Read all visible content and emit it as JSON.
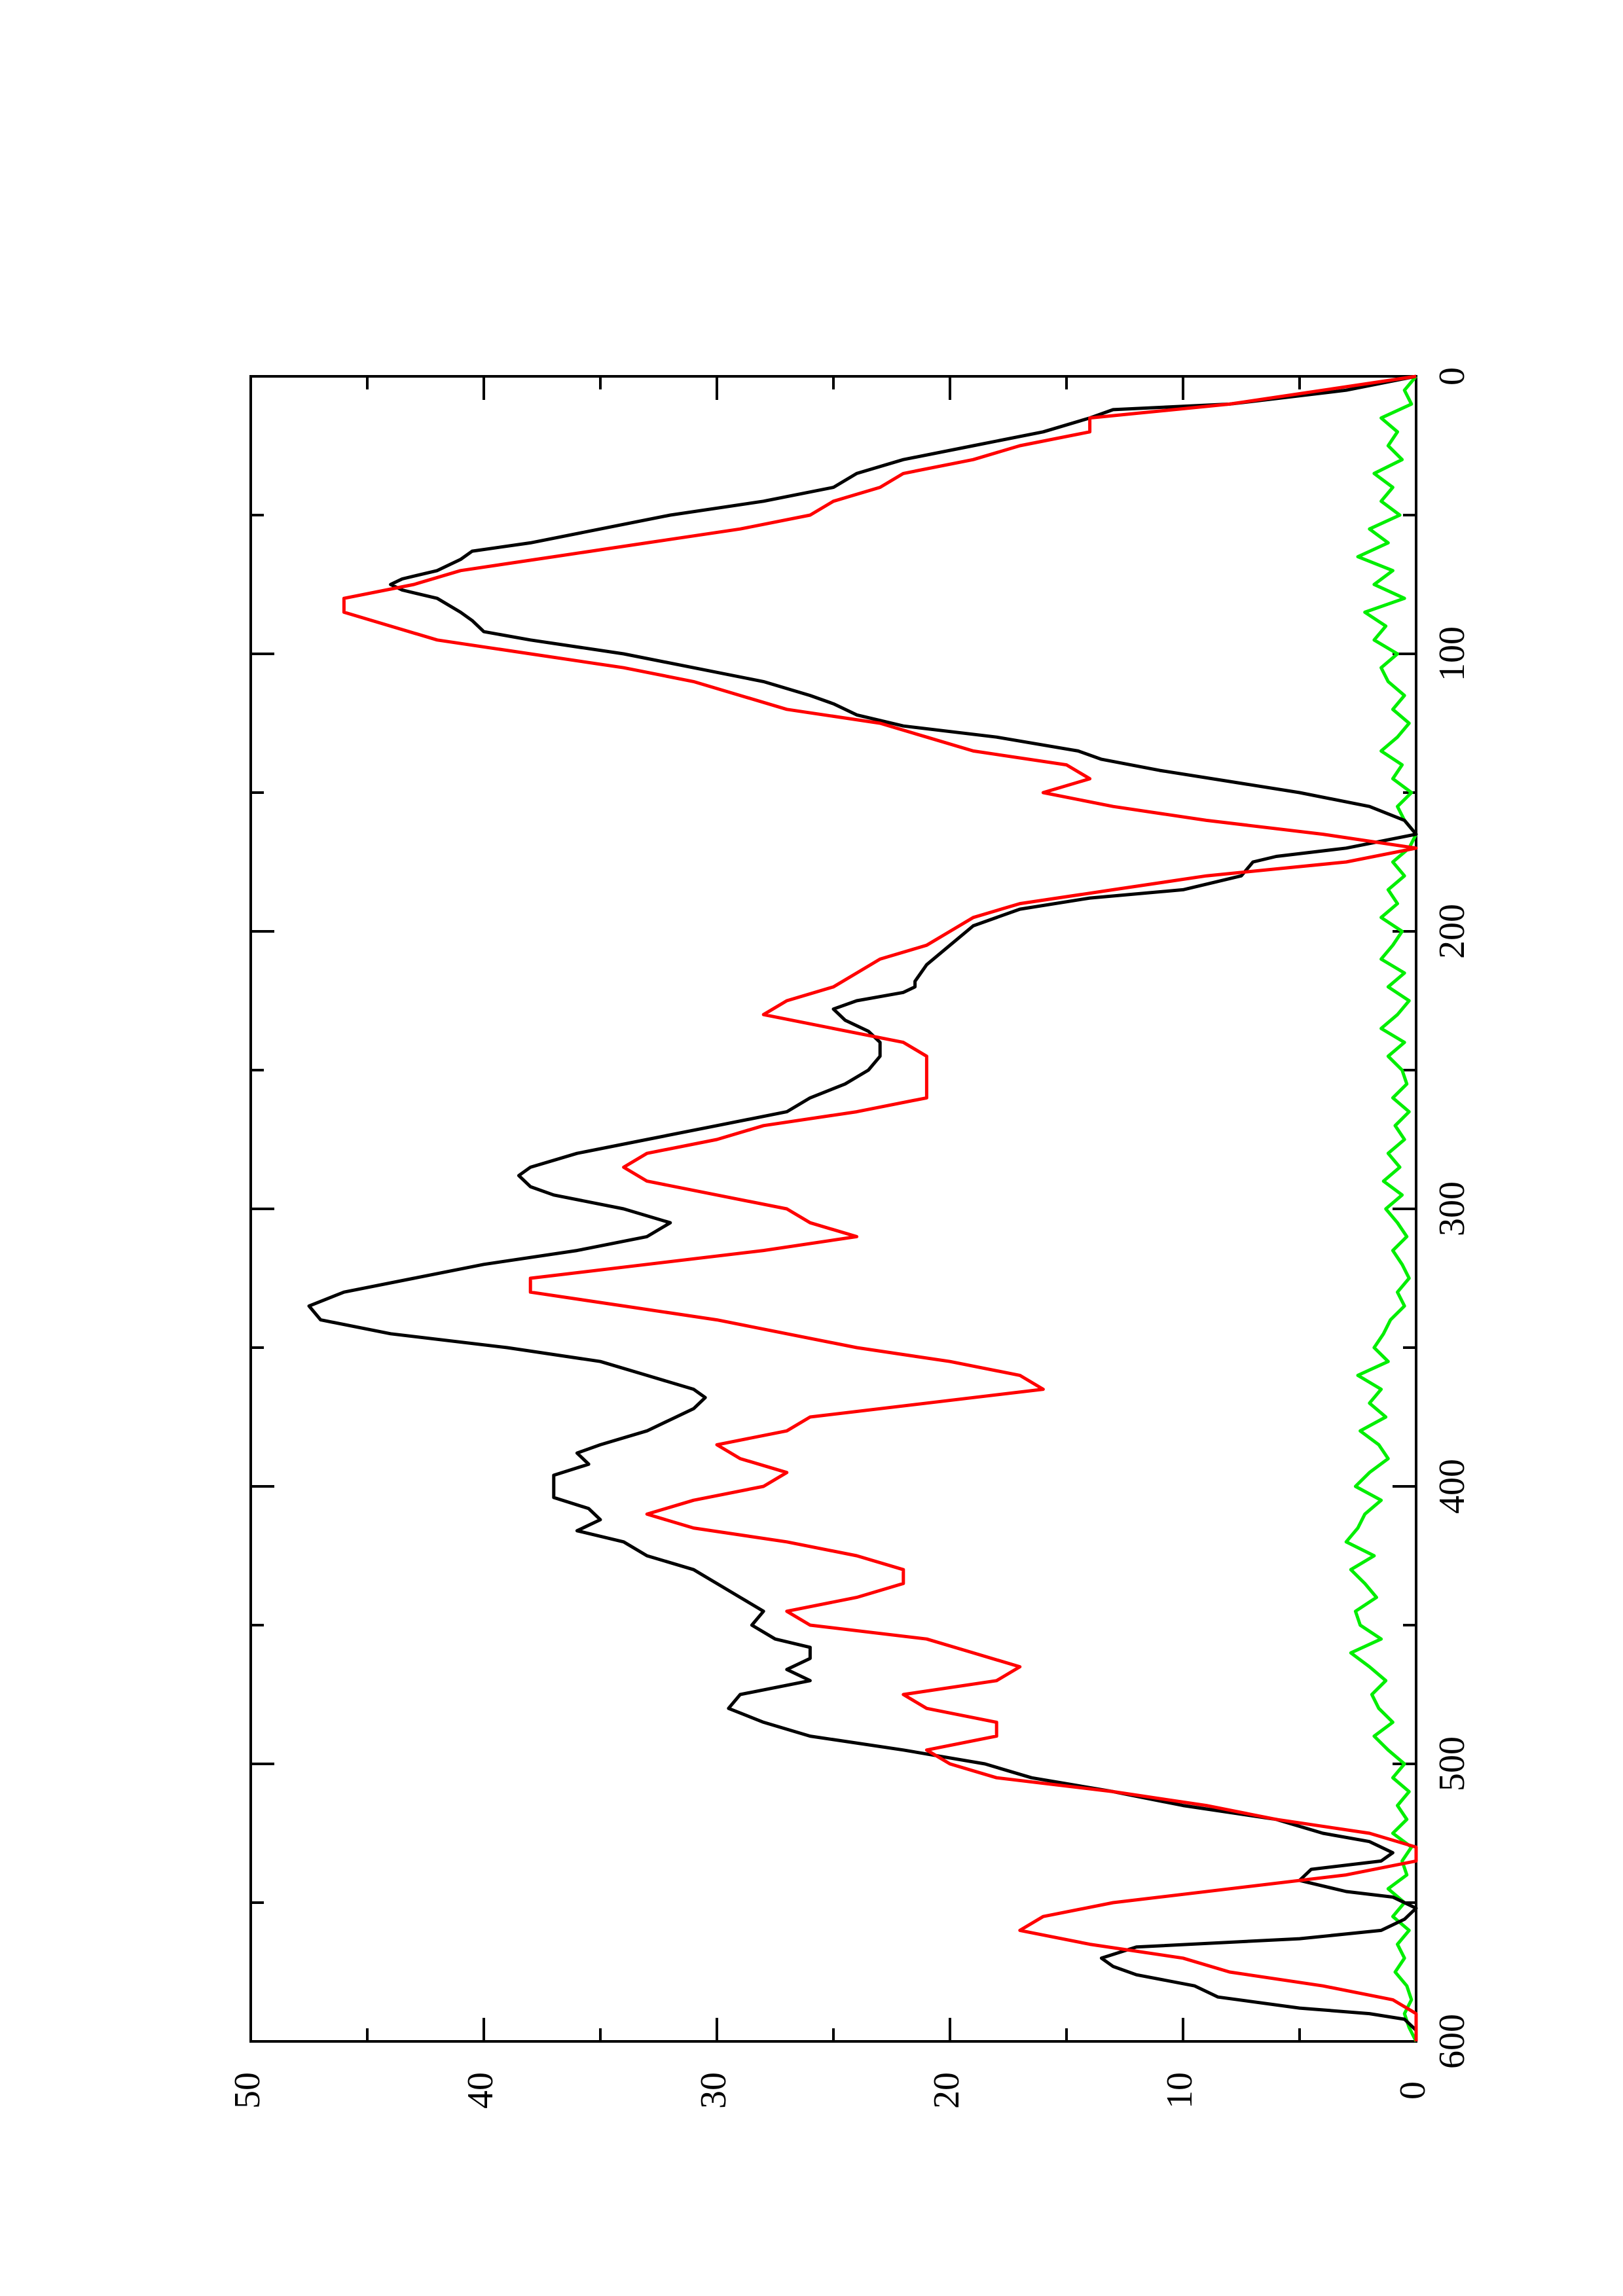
{
  "chart_data": {
    "type": "line",
    "orientation": "rotated-90-ccw",
    "title": "",
    "xlabel": "",
    "ylabel": "",
    "xlim": [
      0,
      600
    ],
    "ylim": [
      0,
      50
    ],
    "x_ticks": [
      0,
      100,
      200,
      300,
      400,
      500,
      600
    ],
    "x_minor_ticks": [
      50,
      150,
      250,
      350,
      450,
      550
    ],
    "y_ticks": [
      0,
      10,
      20,
      30,
      40,
      50
    ],
    "y_minor_ticks": [
      5,
      15,
      25,
      35,
      45
    ],
    "x_tick_labels": [
      "0",
      "100",
      "200",
      "300",
      "400",
      "500",
      "600"
    ],
    "y_tick_labels": [
      "0",
      "10",
      "20",
      "30",
      "40",
      "50"
    ],
    "grid": false,
    "series": [
      {
        "color": "#000000",
        "x": [
          0,
          5,
          10,
          12,
          15,
          20,
          25,
          30,
          35,
          40,
          45,
          50,
          55,
          60,
          63,
          66,
          70,
          73,
          75,
          77,
          80,
          85,
          88,
          92,
          95,
          100,
          105,
          110,
          115,
          118,
          122,
          126,
          130,
          135,
          138,
          142,
          146,
          150,
          155,
          160,
          165,
          170,
          173,
          175,
          180,
          185,
          188,
          192,
          198,
          205,
          212,
          218,
          220,
          222,
          225,
          228,
          232,
          236,
          240,
          245,
          250,
          255,
          260,
          265,
          270,
          275,
          280,
          285,
          288,
          292,
          295,
          300,
          305,
          310,
          315,
          320,
          325,
          330,
          335,
          340,
          345,
          350,
          355,
          360,
          365,
          368,
          372,
          376,
          380,
          385,
          388,
          392,
          396,
          400,
          404,
          408,
          412,
          416,
          420,
          425,
          430,
          435,
          440,
          445,
          450,
          455,
          458,
          462,
          466,
          470,
          475,
          480,
          485,
          490,
          495,
          500,
          505,
          510,
          515,
          520,
          525,
          528,
          532,
          535,
          538,
          542,
          546,
          548,
          552,
          556,
          560,
          563,
          566,
          570,
          573,
          576,
          580,
          584,
          588,
          590,
          592,
          596,
          600
        ],
        "y": [
          0,
          3,
          8,
          13,
          14,
          16,
          19,
          22,
          24,
          25,
          28,
          32,
          35,
          38,
          40.5,
          41,
          42,
          43.5,
          44,
          43.5,
          42,
          41,
          40.5,
          40,
          38,
          34,
          31,
          28,
          26,
          25,
          24,
          22,
          18,
          14.5,
          13.5,
          11,
          8,
          5,
          2,
          0.5,
          0,
          3,
          6,
          7,
          7.5,
          10,
          14,
          17,
          19,
          20,
          21,
          21.5,
          21.5,
          22,
          24,
          25,
          24.5,
          23.5,
          23,
          23,
          23.5,
          24.5,
          26,
          27,
          30,
          33,
          36,
          38,
          38.5,
          38,
          37,
          34,
          32,
          33,
          36,
          40,
          43,
          46,
          47.5,
          47,
          44,
          39,
          35,
          33,
          31,
          30.5,
          31,
          32,
          33,
          35,
          36,
          35.5,
          37,
          37,
          37,
          35.5,
          35,
          36,
          34,
          33,
          31,
          30,
          29,
          28,
          28.5,
          27.5,
          26,
          26,
          27,
          26,
          29,
          29.5,
          28,
          26,
          22,
          18.5,
          16.5,
          13,
          10,
          6,
          4,
          2,
          1,
          1.5,
          4.5,
          5,
          3,
          1,
          0,
          0.5,
          1.5,
          5,
          12,
          13.5,
          13,
          12,
          9.5,
          8.5,
          5,
          2,
          0.5,
          0,
          0
        ]
      },
      {
        "color": "#ff0000",
        "x": [
          0,
          5,
          10,
          15,
          20,
          25,
          30,
          35,
          40,
          45,
          50,
          55,
          60,
          65,
          70,
          75,
          80,
          85,
          90,
          95,
          100,
          105,
          110,
          115,
          120,
          125,
          130,
          135,
          140,
          145,
          150,
          155,
          160,
          165,
          170,
          175,
          180,
          185,
          190,
          195,
          200,
          205,
          210,
          215,
          220,
          225,
          230,
          235,
          240,
          245,
          250,
          255,
          260,
          265,
          270,
          275,
          280,
          285,
          290,
          295,
          300,
          305,
          310,
          315,
          320,
          325,
          330,
          335,
          340,
          345,
          350,
          355,
          360,
          365,
          370,
          375,
          380,
          385,
          390,
          395,
          400,
          405,
          410,
          415,
          420,
          425,
          430,
          435,
          440,
          445,
          450,
          455,
          460,
          465,
          470,
          475,
          480,
          485,
          490,
          495,
          500,
          505,
          510,
          515,
          520,
          525,
          530,
          535,
          540,
          545,
          550,
          555,
          560,
          565,
          570,
          575,
          580,
          585,
          590,
          595,
          600
        ],
        "y": [
          0,
          4,
          8,
          14,
          14,
          17,
          19,
          22,
          23,
          25,
          26,
          29,
          33,
          37,
          41,
          43,
          46,
          46,
          44,
          42,
          38,
          34,
          31,
          29,
          27,
          23,
          21,
          19,
          15,
          14,
          16,
          13,
          9,
          4,
          0,
          3,
          9,
          13,
          17,
          19,
          20,
          21,
          23,
          24,
          25,
          27,
          28,
          25,
          22,
          21,
          21,
          21,
          21,
          24,
          28,
          30,
          33,
          34,
          33,
          30,
          27,
          26,
          24,
          28,
          33,
          38,
          38,
          34,
          30,
          27,
          24,
          20,
          17,
          16,
          21,
          26,
          27,
          30,
          29,
          27,
          28,
          31,
          33,
          31,
          27,
          24,
          22,
          22,
          24,
          27,
          26,
          21,
          19,
          17,
          18,
          22,
          21,
          18,
          18,
          21,
          20,
          18,
          13,
          9,
          6,
          2,
          0,
          0,
          3,
          8,
          13,
          16,
          17,
          14,
          10,
          8,
          4,
          1,
          0,
          0,
          0
        ]
      },
      {
        "color": "#00ee00",
        "x": [
          0,
          5,
          10,
          15,
          20,
          25,
          30,
          35,
          40,
          45,
          50,
          55,
          60,
          65,
          70,
          75,
          80,
          85,
          90,
          95,
          100,
          105,
          110,
          115,
          120,
          125,
          130,
          135,
          140,
          145,
          150,
          155,
          160,
          165,
          170,
          175,
          180,
          185,
          190,
          195,
          200,
          205,
          210,
          215,
          220,
          225,
          230,
          235,
          240,
          245,
          250,
          255,
          260,
          265,
          270,
          275,
          280,
          285,
          290,
          295,
          300,
          305,
          310,
          315,
          320,
          325,
          330,
          335,
          340,
          345,
          350,
          355,
          360,
          365,
          370,
          375,
          380,
          385,
          390,
          395,
          400,
          405,
          410,
          415,
          420,
          425,
          430,
          435,
          440,
          445,
          450,
          455,
          460,
          465,
          470,
          475,
          480,
          485,
          490,
          495,
          500,
          505,
          510,
          515,
          520,
          525,
          530,
          535,
          540,
          545,
          550,
          555,
          560,
          565,
          570,
          575,
          580,
          585,
          590,
          595,
          600
        ],
        "y": [
          0,
          0.5,
          0.2,
          1.5,
          0.8,
          1.2,
          0.6,
          1.8,
          1.0,
          1.5,
          0.7,
          2.0,
          1.2,
          2.5,
          1.0,
          1.8,
          0.5,
          2.2,
          1.3,
          1.8,
          0.8,
          1.5,
          1.2,
          0.5,
          1.0,
          0.3,
          0.8,
          1.5,
          0.6,
          1.0,
          0.2,
          0.8,
          0.5,
          0,
          0.3,
          1.0,
          0.5,
          1.2,
          0.8,
          1.5,
          0.6,
          1.0,
          1.5,
          0.5,
          1.2,
          0.3,
          0.8,
          1.5,
          0.5,
          1.2,
          0.6,
          0.4,
          1.0,
          0.3,
          0.9,
          0.5,
          1.2,
          0.7,
          1.4,
          0.6,
          1.3,
          0.8,
          0.4,
          1.0,
          0.6,
          0.3,
          0.8,
          0.5,
          1.1,
          1.4,
          1.8,
          1.2,
          2.5,
          1.5,
          2.0,
          1.3,
          2.4,
          1.6,
          1.2,
          2.0,
          2.6,
          1.5,
          2.2,
          2.5,
          3.0,
          1.8,
          2.8,
          2.2,
          1.7,
          2.6,
          2.4,
          1.5,
          2.8,
          2.0,
          1.3,
          1.9,
          1.6,
          1.0,
          1.8,
          1.2,
          0.5,
          1.0,
          0.3,
          0.8,
          0.4,
          1.0,
          0.2,
          0.6,
          0.4,
          1.2,
          0.5,
          1.0,
          0.3,
          0.8,
          0.5,
          0.9,
          0.4,
          0.2,
          0.5,
          0.3,
          0
        ]
      }
    ]
  }
}
